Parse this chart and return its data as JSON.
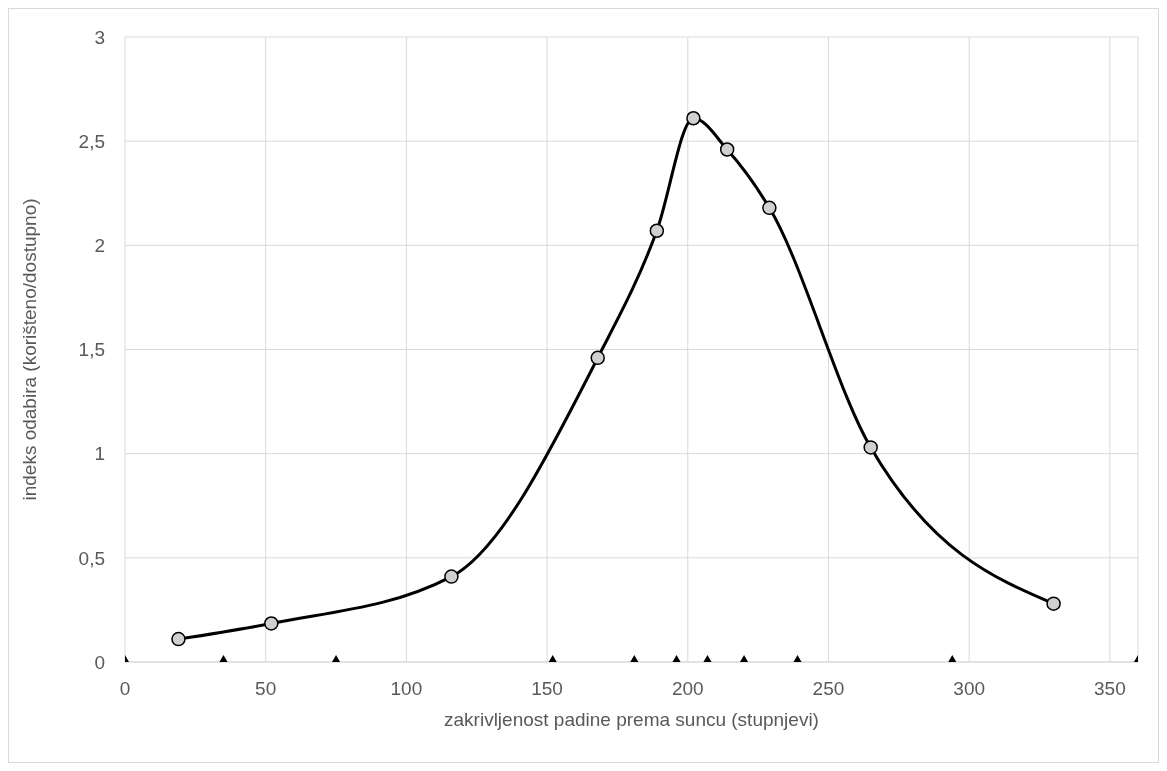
{
  "chart_data": {
    "type": "line",
    "xlabel": "zakrivljenost padine prema suncu (stupnjevi)",
    "ylabel": "indeks odabira (korišteno/dostupno)",
    "series": [
      {
        "color": "#000000",
        "marker": "circle",
        "x": [
          19,
          52,
          116,
          168,
          189,
          202,
          214,
          229,
          265,
          330
        ],
        "values": [
          0.11,
          0.185,
          0.41,
          1.46,
          2.07,
          2.61,
          2.46,
          2.18,
          1.03,
          0.28
        ]
      },
      {
        "type": "scatter",
        "color": "#000000",
        "marker": "triangle",
        "x": [
          0,
          35,
          75,
          152,
          181,
          196,
          207,
          220,
          239,
          294,
          360
        ],
        "values": [
          0,
          0,
          0,
          0,
          0,
          0,
          0,
          0,
          0,
          0,
          0
        ]
      }
    ],
    "xlim": [
      0,
      360
    ],
    "xticks": [
      0,
      50,
      100,
      150,
      200,
      250,
      300,
      350
    ],
    "ylim": [
      0,
      3
    ],
    "yticks": [
      0,
      {
        "value": 0.5,
        "label": "0,5"
      },
      1,
      {
        "value": 1.5,
        "label": "1,5"
      },
      2,
      {
        "value": 2.5,
        "label": "2,5"
      },
      3
    ],
    "grid": true,
    "line_style": "solid"
  }
}
